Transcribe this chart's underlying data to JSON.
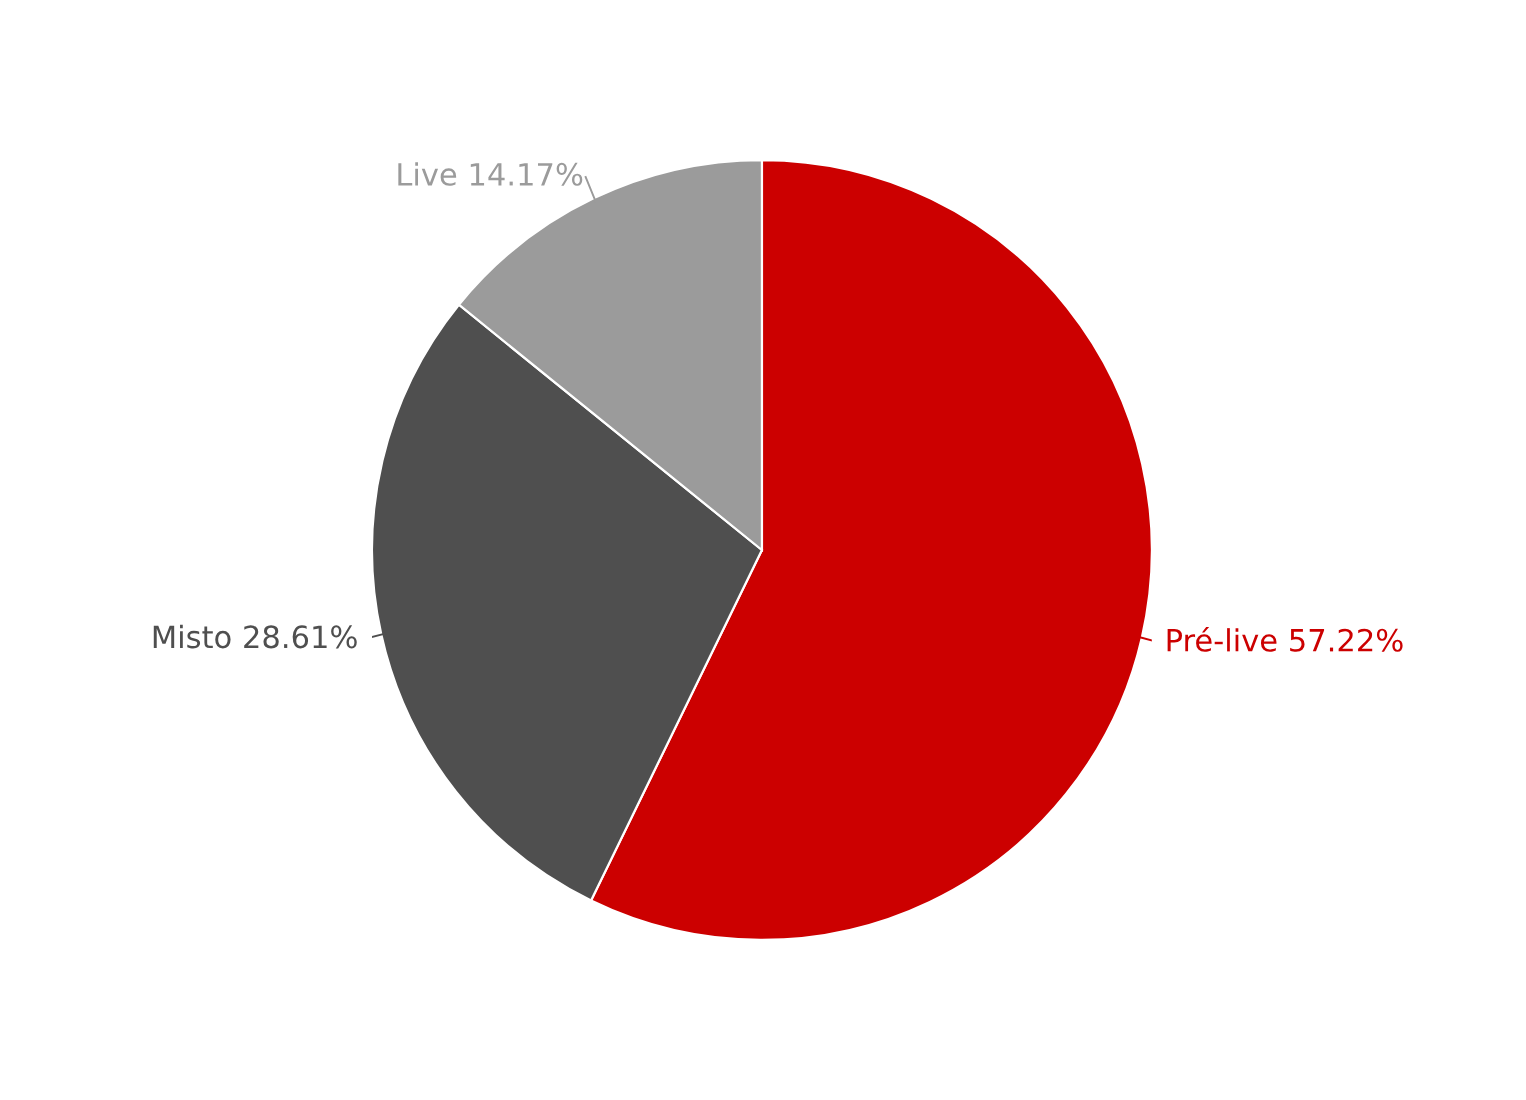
{
  "chart_data": {
    "type": "pie",
    "categories": [
      "Pré-live",
      "Misto",
      "Live"
    ],
    "values": [
      57.22,
      28.61,
      14.17
    ],
    "value_labels": [
      "57.22%",
      "28.61%",
      "14.17%"
    ],
    "colors": [
      "#cc0000",
      "#4f4f4f",
      "#9b9b9b"
    ]
  }
}
